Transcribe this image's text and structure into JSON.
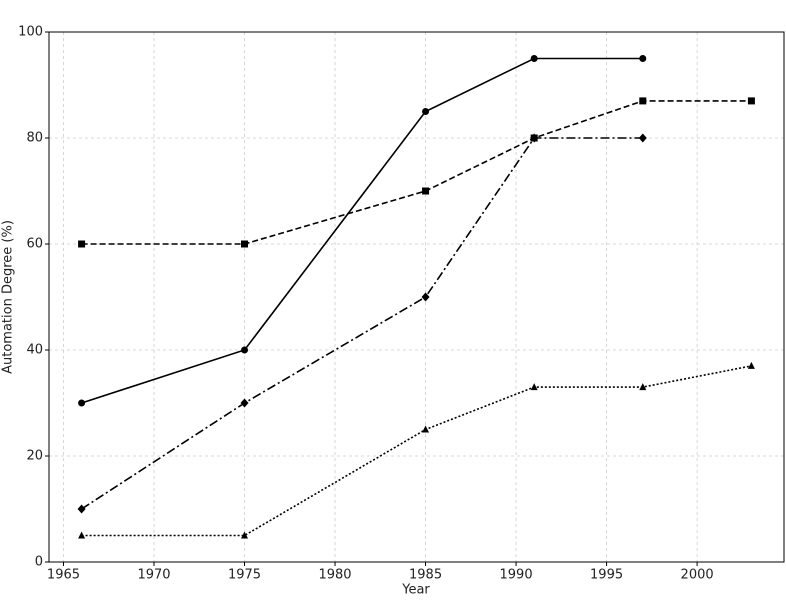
{
  "chart_data": {
    "type": "line",
    "xlabel": "Year",
    "ylabel": "Automation Degree (%)",
    "xlim": [
      1964.2,
      2004.8
    ],
    "xticks": [
      1965,
      1970,
      1975,
      1980,
      1985,
      1990,
      1995,
      2000
    ],
    "ylim": [
      0,
      100
    ],
    "yticks": [
      0,
      20,
      40,
      60,
      80,
      100
    ],
    "grid": true,
    "series": [
      {
        "color": "#000000",
        "linestyle": "solid",
        "marker": "circle",
        "x": [
          1966,
          1975,
          1985,
          1991,
          1997
        ],
        "values": [
          30,
          40,
          85,
          95,
          95
        ]
      },
      {
        "color": "#000000",
        "linestyle": "dashed",
        "marker": "square",
        "x": [
          1966,
          1975,
          1985,
          1991,
          1997,
          2003
        ],
        "values": [
          60,
          60,
          70,
          80,
          87,
          87
        ]
      },
      {
        "color": "#000000",
        "linestyle": "dashdot",
        "marker": "diamond",
        "x": [
          1966,
          1975,
          1985,
          1991,
          1997
        ],
        "values": [
          10,
          30,
          50,
          80,
          80
        ]
      },
      {
        "color": "#000000",
        "linestyle": "dotted",
        "marker": "triangle",
        "x": [
          1966,
          1975,
          1985,
          1991,
          1997,
          2003
        ],
        "values": [
          5,
          5,
          25,
          33,
          33,
          37
        ]
      }
    ]
  }
}
